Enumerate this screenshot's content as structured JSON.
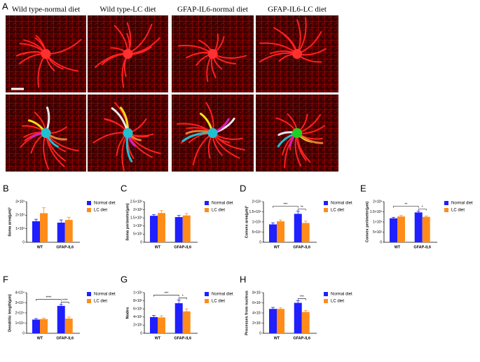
{
  "panel_a": {
    "label": "A",
    "headings": [
      "Wild type-normal diet",
      "Wild type-LC diet",
      "GFAP-IL6-normal diet",
      "GFAP-IL6-LC diet"
    ]
  },
  "chart_data": [
    {
      "type": "bar",
      "panel": "B",
      "ylabel": "Soma area(μm)²",
      "categories": [
        "WT",
        "GFAP-IL6"
      ],
      "series": [
        {
          "name": "Normal diet",
          "color": "#1f1fff",
          "values": [
            1550,
            1450
          ],
          "errors": [
            150,
            200
          ]
        },
        {
          "name": "LC diet",
          "color": "#ff8c1a",
          "values": [
            2150,
            1650
          ],
          "errors": [
            400,
            200
          ]
        }
      ],
      "ylim": [
        0,
        3000
      ],
      "yticks": [
        0,
        {
          "value": 1000,
          "label": "1×10³"
        },
        {
          "value": 2000,
          "label": "2×10³"
        },
        {
          "value": 3000,
          "label": "3×10³"
        }
      ],
      "annotations": []
    },
    {
      "type": "bar",
      "panel": "C",
      "ylabel": "Soma perimeter(μm)",
      "categories": [
        "WT",
        "GFAP-IL6"
      ],
      "series": [
        {
          "name": "Normal diet",
          "color": "#1f1fff",
          "values": [
            1630,
            1550
          ],
          "errors": [
            70,
            100
          ]
        },
        {
          "name": "LC diet",
          "color": "#ff8c1a",
          "values": [
            1800,
            1650
          ],
          "errors": [
            150,
            120
          ]
        }
      ],
      "ylim": [
        0,
        2500
      ],
      "yticks": [
        0,
        {
          "value": 500,
          "label": "5×10²"
        },
        {
          "value": 1000,
          "label": "1×10³"
        },
        {
          "value": 1500,
          "label": "1.5×10³"
        },
        {
          "value": 2000,
          "label": "2×10³"
        },
        {
          "value": 2500,
          "label": "2.5×10³"
        }
      ],
      "annotations": []
    },
    {
      "type": "bar",
      "panel": "D",
      "ylabel": "Convex area(μm)²",
      "categories": [
        "WT",
        "GFAP-IL6"
      ],
      "series": [
        {
          "name": "Normal diet",
          "color": "#1f1fff",
          "values": [
            88000,
            140000
          ],
          "errors": [
            8000,
            13000
          ]
        },
        {
          "name": "LC diet",
          "color": "#ff8c1a",
          "values": [
            103000,
            95000
          ],
          "errors": [
            7000,
            9000
          ]
        }
      ],
      "ylim": [
        0,
        200000
      ],
      "yticks": [
        0,
        {
          "value": 50000,
          "label": "5×10⁴"
        },
        {
          "value": 100000,
          "label": "1×10⁵"
        },
        {
          "value": 150000,
          "label": "1.5×10⁵"
        },
        {
          "value": 200000,
          "label": "2×10⁵"
        }
      ],
      "annotations": [
        "***",
        "**"
      ]
    },
    {
      "type": "bar",
      "panel": "E",
      "ylabel": "Convex perimeter(μm)",
      "categories": [
        "WT",
        "GFAP-IL6"
      ],
      "series": [
        {
          "name": "Normal diet",
          "color": "#1f1fff",
          "values": [
            1180,
            1470
          ],
          "errors": [
            50,
            60
          ]
        },
        {
          "name": "LC diet",
          "color": "#ff8c1a",
          "values": [
            1270,
            1250
          ],
          "errors": [
            50,
            40
          ]
        }
      ],
      "ylim": [
        0,
        2000
      ],
      "yticks": [
        0,
        {
          "value": 500,
          "label": "5×10²"
        },
        {
          "value": 1000,
          "label": "1×10³"
        },
        {
          "value": 1500,
          "label": "1.5×10³"
        },
        {
          "value": 2000,
          "label": "2×10³"
        }
      ],
      "annotations": [
        "**",
        "*"
      ]
    },
    {
      "type": "bar",
      "panel": "F",
      "ylabel": "Dendritic length(μm)",
      "categories": [
        "WT",
        "GFAP-IL6"
      ],
      "series": [
        {
          "name": "Normal diet",
          "color": "#1f1fff",
          "values": [
            13500,
            27000
          ],
          "errors": [
            1000,
            1500
          ]
        },
        {
          "name": "LC diet",
          "color": "#ff8c1a",
          "values": [
            14000,
            14500
          ],
          "errors": [
            1000,
            1500
          ]
        }
      ],
      "ylim": [
        0,
        40000
      ],
      "yticks": [
        0,
        {
          "value": 10000,
          "label": "1×10⁴"
        },
        {
          "value": 20000,
          "label": "2×10⁴"
        },
        {
          "value": 30000,
          "label": "3×10⁴"
        },
        {
          "value": 40000,
          "label": "4×10⁴"
        }
      ],
      "annotations": [
        "****",
        "****"
      ]
    },
    {
      "type": "bar",
      "panel": "G",
      "ylabel": "Nodes",
      "categories": [
        "WT",
        "GFAP-IL6"
      ],
      "series": [
        {
          "name": "Normal diet",
          "color": "#1f1fff",
          "values": [
            400,
            740
          ],
          "errors": [
            40,
            80
          ]
        },
        {
          "name": "LC diet",
          "color": "#ff8c1a",
          "values": [
            390,
            540
          ],
          "errors": [
            40,
            60
          ]
        }
      ],
      "ylim": [
        0,
        1000
      ],
      "yticks": [
        0,
        {
          "value": 200,
          "label": "2×10²"
        },
        {
          "value": 400,
          "label": "4×10²"
        },
        {
          "value": 600,
          "label": "6×10²"
        },
        {
          "value": 800,
          "label": "8×10²"
        },
        {
          "value": 1000,
          "label": "1×10³"
        }
      ],
      "annotations": [
        "***",
        "*"
      ]
    },
    {
      "type": "bar",
      "panel": "H",
      "ylabel": "Processes from nucleus",
      "categories": [
        "WT",
        "GFAP-IL6"
      ],
      "series": [
        {
          "name": "Normal diet",
          "color": "#1f1fff",
          "values": [
            48,
            60
          ],
          "errors": [
            3,
            4
          ]
        },
        {
          "name": "LC diet",
          "color": "#ff8c1a",
          "values": [
            48,
            42
          ],
          "errors": [
            2,
            3
          ]
        }
      ],
      "ylim": [
        0,
        80
      ],
      "yticks": [
        0,
        {
          "value": 20,
          "label": "2×10¹"
        },
        {
          "value": 40,
          "label": "4×10¹"
        },
        {
          "value": 60,
          "label": "6×10¹"
        },
        {
          "value": 80,
          "label": "8×10¹"
        }
      ],
      "annotations": [
        "***"
      ]
    }
  ]
}
